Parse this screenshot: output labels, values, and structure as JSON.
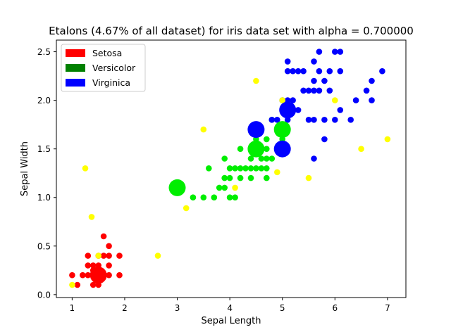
{
  "chart_data": {
    "type": "scatter",
    "title": "Etalons (4.67% of all dataset) for iris data set with alpha = 0.700000",
    "xlabel": "Sepal Length",
    "ylabel": "Sepal Width",
    "xlim": [
      0.7,
      7.35
    ],
    "ylim": [
      -0.03,
      2.62
    ],
    "xticks": [
      "1",
      "2",
      "3",
      "4",
      "5",
      "6",
      "7"
    ],
    "xtick_values": [
      1,
      2,
      3,
      4,
      5,
      6,
      7
    ],
    "yticks": [
      "0.0",
      "0.5",
      "1.0",
      "1.5",
      "2.0",
      "2.5"
    ],
    "ytick_values": [
      0.0,
      0.5,
      1.0,
      1.5,
      2.0,
      2.5
    ],
    "grid": false,
    "legend_placement": "top-left",
    "legend": [
      {
        "label": "Setosa",
        "color": "#ff0000"
      },
      {
        "label": "Versicolor",
        "color": "#008000"
      },
      {
        "label": "Virginica",
        "color": "#0000ff"
      }
    ],
    "series": [
      {
        "name": "Setosa",
        "color": "#ff0000",
        "points": [
          [
            1.0,
            0.2
          ],
          [
            1.1,
            0.1
          ],
          [
            1.2,
            0.2
          ],
          [
            1.3,
            0.2
          ],
          [
            1.3,
            0.3
          ],
          [
            1.3,
            0.4
          ],
          [
            1.4,
            0.1
          ],
          [
            1.4,
            0.2
          ],
          [
            1.4,
            0.3
          ],
          [
            1.5,
            0.1
          ],
          [
            1.5,
            0.2
          ],
          [
            1.5,
            0.3
          ],
          [
            1.5,
            0.4
          ],
          [
            1.6,
            0.2
          ],
          [
            1.6,
            0.4
          ],
          [
            1.6,
            0.6
          ],
          [
            1.7,
            0.2
          ],
          [
            1.7,
            0.3
          ],
          [
            1.7,
            0.4
          ],
          [
            1.7,
            0.5
          ],
          [
            1.9,
            0.2
          ],
          [
            1.9,
            0.4
          ],
          [
            1.4,
            0.25
          ],
          [
            1.55,
            0.15
          ]
        ]
      },
      {
        "name": "Versicolor",
        "color": "#00ee00",
        "points": [
          [
            3.3,
            1.0
          ],
          [
            3.5,
            1.0
          ],
          [
            3.6,
            1.3
          ],
          [
            3.7,
            1.0
          ],
          [
            3.8,
            1.1
          ],
          [
            3.9,
            1.1
          ],
          [
            3.9,
            1.2
          ],
          [
            3.9,
            1.4
          ],
          [
            4.0,
            1.0
          ],
          [
            4.0,
            1.2
          ],
          [
            4.0,
            1.3
          ],
          [
            4.1,
            1.0
          ],
          [
            4.1,
            1.3
          ],
          [
            4.2,
            1.2
          ],
          [
            4.2,
            1.3
          ],
          [
            4.2,
            1.5
          ],
          [
            4.3,
            1.3
          ],
          [
            4.4,
            1.2
          ],
          [
            4.4,
            1.3
          ],
          [
            4.4,
            1.4
          ],
          [
            4.5,
            1.3
          ],
          [
            4.5,
            1.5
          ],
          [
            4.5,
            1.6
          ],
          [
            4.6,
            1.3
          ],
          [
            4.6,
            1.4
          ],
          [
            4.7,
            1.2
          ],
          [
            4.7,
            1.3
          ],
          [
            4.7,
            1.4
          ],
          [
            4.7,
            1.5
          ],
          [
            4.7,
            1.6
          ],
          [
            4.8,
            1.4
          ],
          [
            4.8,
            1.8
          ],
          [
            4.9,
            1.5
          ],
          [
            5.0,
            1.7
          ],
          [
            5.0,
            1.6
          ]
        ]
      },
      {
        "name": "Virginica",
        "color": "#0000ff",
        "points": [
          [
            4.8,
            1.8
          ],
          [
            4.9,
            1.8
          ],
          [
            5.0,
            1.5
          ],
          [
            5.0,
            2.0
          ],
          [
            5.1,
            1.8
          ],
          [
            5.1,
            1.9
          ],
          [
            5.1,
            2.0
          ],
          [
            5.1,
            2.3
          ],
          [
            5.1,
            2.4
          ],
          [
            5.2,
            2.0
          ],
          [
            5.2,
            2.3
          ],
          [
            5.3,
            1.9
          ],
          [
            5.3,
            2.3
          ],
          [
            5.4,
            2.1
          ],
          [
            5.4,
            2.3
          ],
          [
            5.5,
            1.8
          ],
          [
            5.5,
            2.1
          ],
          [
            5.6,
            1.4
          ],
          [
            5.6,
            1.8
          ],
          [
            5.6,
            2.1
          ],
          [
            5.6,
            2.2
          ],
          [
            5.6,
            2.4
          ],
          [
            5.7,
            2.1
          ],
          [
            5.7,
            2.3
          ],
          [
            5.7,
            2.5
          ],
          [
            5.8,
            1.6
          ],
          [
            5.8,
            1.8
          ],
          [
            5.8,
            2.2
          ],
          [
            5.9,
            2.1
          ],
          [
            5.9,
            2.3
          ],
          [
            6.0,
            1.8
          ],
          [
            6.0,
            2.5
          ],
          [
            6.1,
            1.9
          ],
          [
            6.1,
            2.3
          ],
          [
            6.1,
            2.5
          ],
          [
            6.3,
            1.8
          ],
          [
            6.4,
            2.0
          ],
          [
            6.6,
            2.1
          ],
          [
            6.7,
            2.0
          ],
          [
            6.7,
            2.2
          ],
          [
            6.9,
            2.3
          ]
        ]
      },
      {
        "name": "",
        "color": "#ffff00",
        "points": [
          [
            1.0,
            0.1
          ],
          [
            1.5,
            0.4
          ],
          [
            1.25,
            1.3
          ],
          [
            1.37,
            0.8
          ],
          [
            2.63,
            0.4
          ],
          [
            3.17,
            0.89
          ],
          [
            3.5,
            1.7
          ],
          [
            4.1,
            1.1
          ],
          [
            4.5,
            2.2
          ],
          [
            4.9,
            1.26
          ],
          [
            5.0,
            2.0
          ],
          [
            5.5,
            1.2
          ],
          [
            6.0,
            2.0
          ],
          [
            6.5,
            1.5
          ],
          [
            7.0,
            1.6
          ]
        ]
      },
      {
        "name": "",
        "color": "#ff0000",
        "large": true,
        "points": [
          [
            1.5,
            0.2
          ]
        ]
      },
      {
        "name": "",
        "color": "#00ee00",
        "large": true,
        "points": [
          [
            3.0,
            1.1
          ],
          [
            4.5,
            1.5
          ],
          [
            5.0,
            1.7
          ]
        ]
      },
      {
        "name": "",
        "color": "#0000ff",
        "large": true,
        "points": [
          [
            4.5,
            1.7
          ],
          [
            5.0,
            1.5
          ],
          [
            5.1,
            1.9
          ]
        ]
      }
    ]
  }
}
